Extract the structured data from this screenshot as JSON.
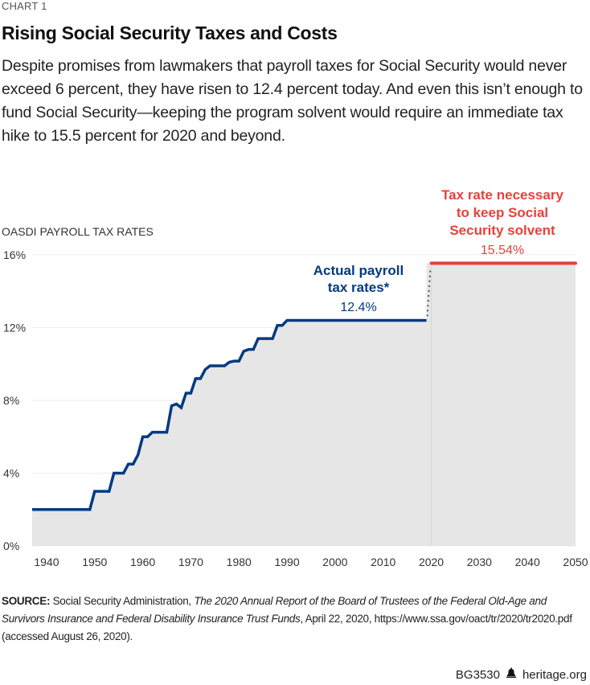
{
  "header": {
    "kicker": "CHART 1",
    "title": "Rising Social Security Taxes and Costs",
    "subtitle": "Despite promises from lawmakers that payroll taxes for Social Security would never exceed 6 percent, they have risen to 12.4 percent today. And even this isn’t enough to fund Social Security—keeping the program solvent would require an immediate tax hike to 15.5 percent for 2020 and beyond."
  },
  "colors": {
    "actual": "#003a80",
    "necessary": "#e8413c",
    "area": "#e6e6e6",
    "grid": "#ececec",
    "connector": "#555555"
  },
  "chart_data": {
    "type": "line",
    "title": "Rising Social Security Taxes and Costs",
    "ylabel": "OASDI PAYROLL TAX RATES",
    "xlabel": "",
    "xlim": [
      1937,
      2050
    ],
    "ylim": [
      0,
      16
    ],
    "grid": true,
    "x_ticks": [
      "1940",
      "1950",
      "1960",
      "1970",
      "1980",
      "1990",
      "2000",
      "2010",
      "2020",
      "2030",
      "2040",
      "2050"
    ],
    "y_ticks": [
      "0%",
      "4%",
      "8%",
      "12%",
      "16%"
    ],
    "series": [
      {
        "name": "Actual payroll tax rates*",
        "color": "#003a80",
        "x": [
          1937,
          1949,
          1950,
          1953,
          1954,
          1956,
          1957,
          1958,
          1959,
          1960,
          1961,
          1962,
          1965,
          1966,
          1967,
          1968,
          1969,
          1970,
          1971,
          1972,
          1973,
          1974,
          1977,
          1978,
          1979,
          1980,
          1981,
          1982,
          1983,
          1984,
          1987,
          1988,
          1989,
          1990,
          2019
        ],
        "values": [
          2,
          2,
          3,
          3,
          4,
          4,
          4.5,
          4.5,
          5,
          6,
          6,
          6.25,
          6.25,
          7.7,
          7.8,
          7.6,
          8.4,
          8.4,
          9.2,
          9.2,
          9.7,
          9.9,
          9.9,
          10.1,
          10.16,
          10.16,
          10.7,
          10.8,
          10.8,
          11.4,
          11.4,
          12.12,
          12.12,
          12.4,
          12.4
        ]
      },
      {
        "name": "Tax rate necessary to keep Social Security solvent",
        "color": "#e8413c",
        "x": [
          2020,
          2050
        ],
        "values": [
          15.54,
          15.54
        ]
      }
    ],
    "annotations": [
      {
        "series": "actual",
        "label_lines": [
          "Actual payroll",
          "tax rates*"
        ],
        "value_text": "12.4%"
      },
      {
        "series": "necessary",
        "label_lines": [
          "Tax rate necessary",
          "to keep Social",
          "Security solvent"
        ],
        "value_text": "15.54%"
      }
    ]
  },
  "source": {
    "label": "SOURCE:",
    "text_plain_1": " Social Security Administration, ",
    "text_italic": "The 2020 Annual Report of the Board of Trustees of the Federal Old-Age and Survivors Insurance and Federal Disability Insurance Trust Funds",
    "text_plain_2": ", April 22, 2020, https://www.ssa.gov/oact/tr/2020/tr2020.pdf (accessed August 26, 2020)."
  },
  "footer": {
    "code": "BG3530",
    "icon": "liberty-bell-icon",
    "site": "heritage.org"
  }
}
